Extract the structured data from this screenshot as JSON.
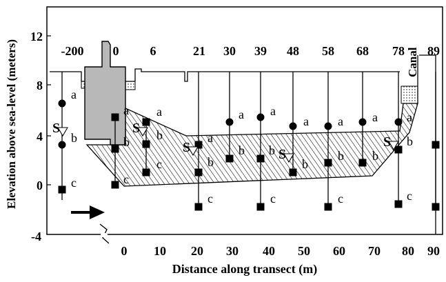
{
  "y_axis": {
    "label": "Elevation above sea-level (meters)",
    "ticks": [
      {
        "label": "12",
        "value": 12
      },
      {
        "label": "8",
        "value": 8
      },
      {
        "label": "4",
        "value": 4
      },
      {
        "label": "0",
        "value": 0
      },
      {
        "label": "-4",
        "value": -4
      }
    ]
  },
  "x_axis": {
    "label": "Distance along transect (m)",
    "ticks": [
      {
        "label": "0",
        "value": 0
      },
      {
        "label": "10",
        "value": 10
      },
      {
        "label": "20",
        "value": 20
      },
      {
        "label": "30",
        "value": 30
      },
      {
        "label": "40",
        "value": 40
      },
      {
        "label": "50",
        "value": 50
      },
      {
        "label": "60",
        "value": 60
      },
      {
        "label": "70",
        "value": 70
      },
      {
        "label": "80",
        "value": 80
      },
      {
        "label": "90",
        "value": 90
      }
    ]
  },
  "station_labels": [
    {
      "label": "-200"
    },
    {
      "label": "0"
    },
    {
      "label": "6"
    },
    {
      "label": "21"
    },
    {
      "label": "30"
    },
    {
      "label": "39"
    },
    {
      "label": "48"
    },
    {
      "label": "58"
    },
    {
      "label": "68"
    },
    {
      "label": "78"
    },
    {
      "label": "89"
    }
  ],
  "canal_label": "Canal",
  "sample_letters": {
    "a": "a",
    "b": "b",
    "c": "c"
  },
  "s_marker": "S",
  "colors": {
    "building": "#b8b8b8",
    "hatch": "#000000",
    "line": "#000000"
  }
}
